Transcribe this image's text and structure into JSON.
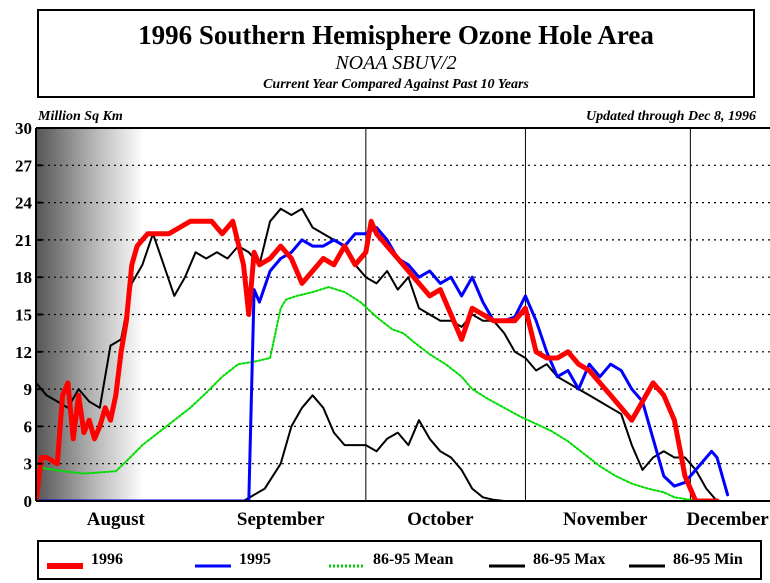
{
  "header": {
    "title": "1996 Southern Hemisphere Ozone Hole Area",
    "subtitle": "NOAA SBUV/2",
    "subtitle2": "Current Year Compared Against Past 10 Years",
    "y_unit": "Million Sq Km",
    "updated": "Updated through Dec 8, 1996"
  },
  "legend": [
    {
      "label": "1996",
      "color": "#ff0000",
      "style": "thick"
    },
    {
      "label": "1995",
      "color": "#0000ff",
      "style": "solid"
    },
    {
      "label": "86-95 Mean",
      "color": "#00cc00",
      "style": "dotted"
    },
    {
      "label": "86-95 Max",
      "color": "#000000",
      "style": "solid"
    },
    {
      "label": "86-95 Min",
      "color": "#000000",
      "style": "solid"
    }
  ],
  "chart_data": {
    "type": "line",
    "title": "1996 Southern Hemisphere Ozone Hole Area",
    "ylabel": "Million Sq Km",
    "ylim": [
      0,
      30
    ],
    "yticks": [
      0,
      3,
      6,
      9,
      12,
      15,
      18,
      21,
      24,
      27,
      30
    ],
    "xlim_day": [
      1,
      130
    ],
    "month_labels": [
      {
        "label": "August",
        "day": 16
      },
      {
        "label": "September",
        "day": 47
      },
      {
        "label": "October",
        "day": 77
      },
      {
        "label": "November",
        "day": 108
      },
      {
        "label": "December",
        "day": 131
      }
    ],
    "month_boundaries_day": [
      63,
      93,
      124
    ],
    "grid": true,
    "series": [
      {
        "name": "86-95 Mean",
        "color": "#00dd00",
        "style": "dotted",
        "width": 2,
        "x": [
          1,
          3,
          6,
          10,
          13,
          16,
          18,
          21,
          24,
          27,
          30,
          33,
          36,
          39,
          42,
          45,
          47,
          48,
          50,
          53,
          56,
          59,
          62,
          65,
          68,
          70,
          72,
          75,
          78,
          81,
          83,
          86,
          89,
          92,
          95,
          98,
          101,
          104,
          107,
          110,
          113,
          116,
          119,
          121,
          124,
          127,
          129,
          131
        ],
        "y": [
          2.8,
          2.6,
          2.4,
          2.2,
          2.3,
          2.4,
          3.2,
          4.5,
          5.5,
          6.5,
          7.5,
          8.7,
          10,
          11,
          11.2,
          11.5,
          15.5,
          16.2,
          16.5,
          16.8,
          17.2,
          16.8,
          16,
          14.8,
          13.8,
          13.5,
          12.8,
          11.8,
          11,
          10,
          9,
          8.2,
          7.5,
          6.8,
          6.2,
          5.6,
          4.8,
          3.8,
          2.8,
          2,
          1.4,
          1,
          0.7,
          0.3,
          0.1,
          0,
          0,
          0
        ]
      },
      {
        "name": "86-95 Max",
        "color": "#000000",
        "style": "solid",
        "width": 2,
        "x": [
          1,
          3,
          5,
          7,
          9,
          11,
          13,
          15,
          17,
          19,
          21,
          23,
          25,
          27,
          29,
          31,
          33,
          35,
          37,
          39,
          41,
          43,
          45,
          47,
          49,
          51,
          53,
          55,
          57,
          59,
          61,
          63,
          65,
          67,
          69,
          71,
          73,
          75,
          77,
          79,
          81,
          83,
          85,
          87,
          89,
          91,
          93,
          95,
          97,
          99,
          101,
          103,
          105,
          107,
          109,
          111,
          113,
          115,
          117,
          119,
          121,
          123,
          125,
          127,
          129,
          131
        ],
        "y": [
          9.5,
          8.5,
          8,
          7.5,
          9,
          8,
          7.5,
          12.5,
          13,
          17.5,
          19,
          21.5,
          19,
          16.5,
          18,
          20,
          19.5,
          20,
          19.5,
          20.5,
          20,
          19,
          22.5,
          23.5,
          23,
          23.5,
          22,
          21.5,
          21,
          20.5,
          19,
          18,
          17.5,
          18.5,
          17,
          18,
          15.5,
          15,
          14.5,
          14.5,
          14,
          15,
          14.5,
          14.5,
          13.5,
          12,
          11.5,
          10.5,
          11,
          10,
          9.5,
          9,
          8.5,
          8,
          7.5,
          7,
          4.5,
          2.5,
          3.5,
          4,
          3.5,
          3.5,
          2.5,
          1,
          0,
          0
        ]
      },
      {
        "name": "86-95 Min",
        "color": "#000000",
        "style": "solid",
        "width": 2,
        "x": [
          1,
          40,
          44,
          47,
          49,
          51,
          53,
          55,
          57,
          59,
          61,
          63,
          65,
          67,
          69,
          71,
          73,
          75,
          77,
          79,
          81,
          83,
          85,
          87,
          89,
          131
        ],
        "y": [
          0,
          0,
          1,
          3,
          6,
          7.5,
          8.5,
          7.5,
          5.5,
          4.5,
          4.5,
          4.5,
          4,
          5,
          5.5,
          4.5,
          6.5,
          5,
          4,
          3.5,
          2.5,
          1,
          0.3,
          0.1,
          0,
          0
        ]
      },
      {
        "name": "1995",
        "color": "#0000ff",
        "style": "solid",
        "width": 3,
        "x": [
          1,
          41,
          42,
          43,
          45,
          47,
          49,
          51,
          53,
          55,
          57,
          59,
          61,
          63,
          65,
          67,
          69,
          71,
          73,
          75,
          77,
          79,
          81,
          83,
          85,
          87,
          89,
          91,
          93,
          95,
          97,
          99,
          101,
          103,
          105,
          107,
          109,
          111,
          113,
          115,
          117,
          119,
          121,
          123,
          125,
          127,
          128,
          129,
          131
        ],
        "y": [
          0,
          0,
          17,
          16,
          18.5,
          19.5,
          20,
          21,
          20.5,
          20.5,
          21,
          20.5,
          21.5,
          21.5,
          22,
          21,
          19.5,
          19,
          18,
          18.5,
          17.5,
          18,
          16.5,
          18,
          16,
          14.5,
          14.5,
          14.8,
          16.5,
          14.5,
          12,
          10,
          10.5,
          9,
          11,
          10,
          11,
          10.5,
          9,
          8,
          5,
          2,
          1.2,
          1.5,
          2.5,
          3.5,
          4,
          3.5,
          0.5
        ]
      },
      {
        "name": "1996",
        "color": "#ff0000",
        "style": "solid",
        "width": 5,
        "x": [
          1,
          2,
          3,
          5,
          6,
          7,
          8,
          9,
          10,
          11,
          12,
          13,
          14,
          15,
          16,
          17,
          18,
          19,
          20,
          21,
          22,
          24,
          26,
          28,
          30,
          32,
          34,
          36,
          38,
          40,
          41,
          42,
          43,
          45,
          47,
          49,
          51,
          53,
          55,
          57,
          59,
          61,
          63,
          64,
          65,
          67,
          69,
          71,
          73,
          75,
          77,
          79,
          81,
          83,
          85,
          87,
          89,
          91,
          93,
          95,
          97,
          99,
          101,
          103,
          105,
          107,
          109,
          111,
          113,
          115,
          117,
          119,
          121,
          123,
          125,
          127,
          128,
          129
        ],
        "y": [
          0,
          3.5,
          3.5,
          3,
          8.5,
          9.5,
          5,
          8.5,
          5.5,
          6.5,
          5,
          6,
          7.5,
          6.5,
          8.5,
          12,
          14.5,
          19,
          20.5,
          21,
          21.5,
          21.5,
          21.5,
          22,
          22.5,
          22.5,
          22.5,
          21.5,
          22.5,
          19,
          15,
          20,
          19,
          19.5,
          20.5,
          19.5,
          17.5,
          18.5,
          19.5,
          19,
          20.5,
          19,
          20,
          22.5,
          21.5,
          20.5,
          19.5,
          18.5,
          17.5,
          16.5,
          17,
          15,
          13,
          15.5,
          15,
          14.5,
          14.5,
          14.5,
          15.5,
          12,
          11.5,
          11.5,
          12,
          11,
          10.5,
          9.5,
          8.5,
          7.5,
          6.5,
          8,
          9.5,
          8.5,
          6.5,
          2,
          0,
          0,
          0,
          0
        ]
      }
    ]
  }
}
